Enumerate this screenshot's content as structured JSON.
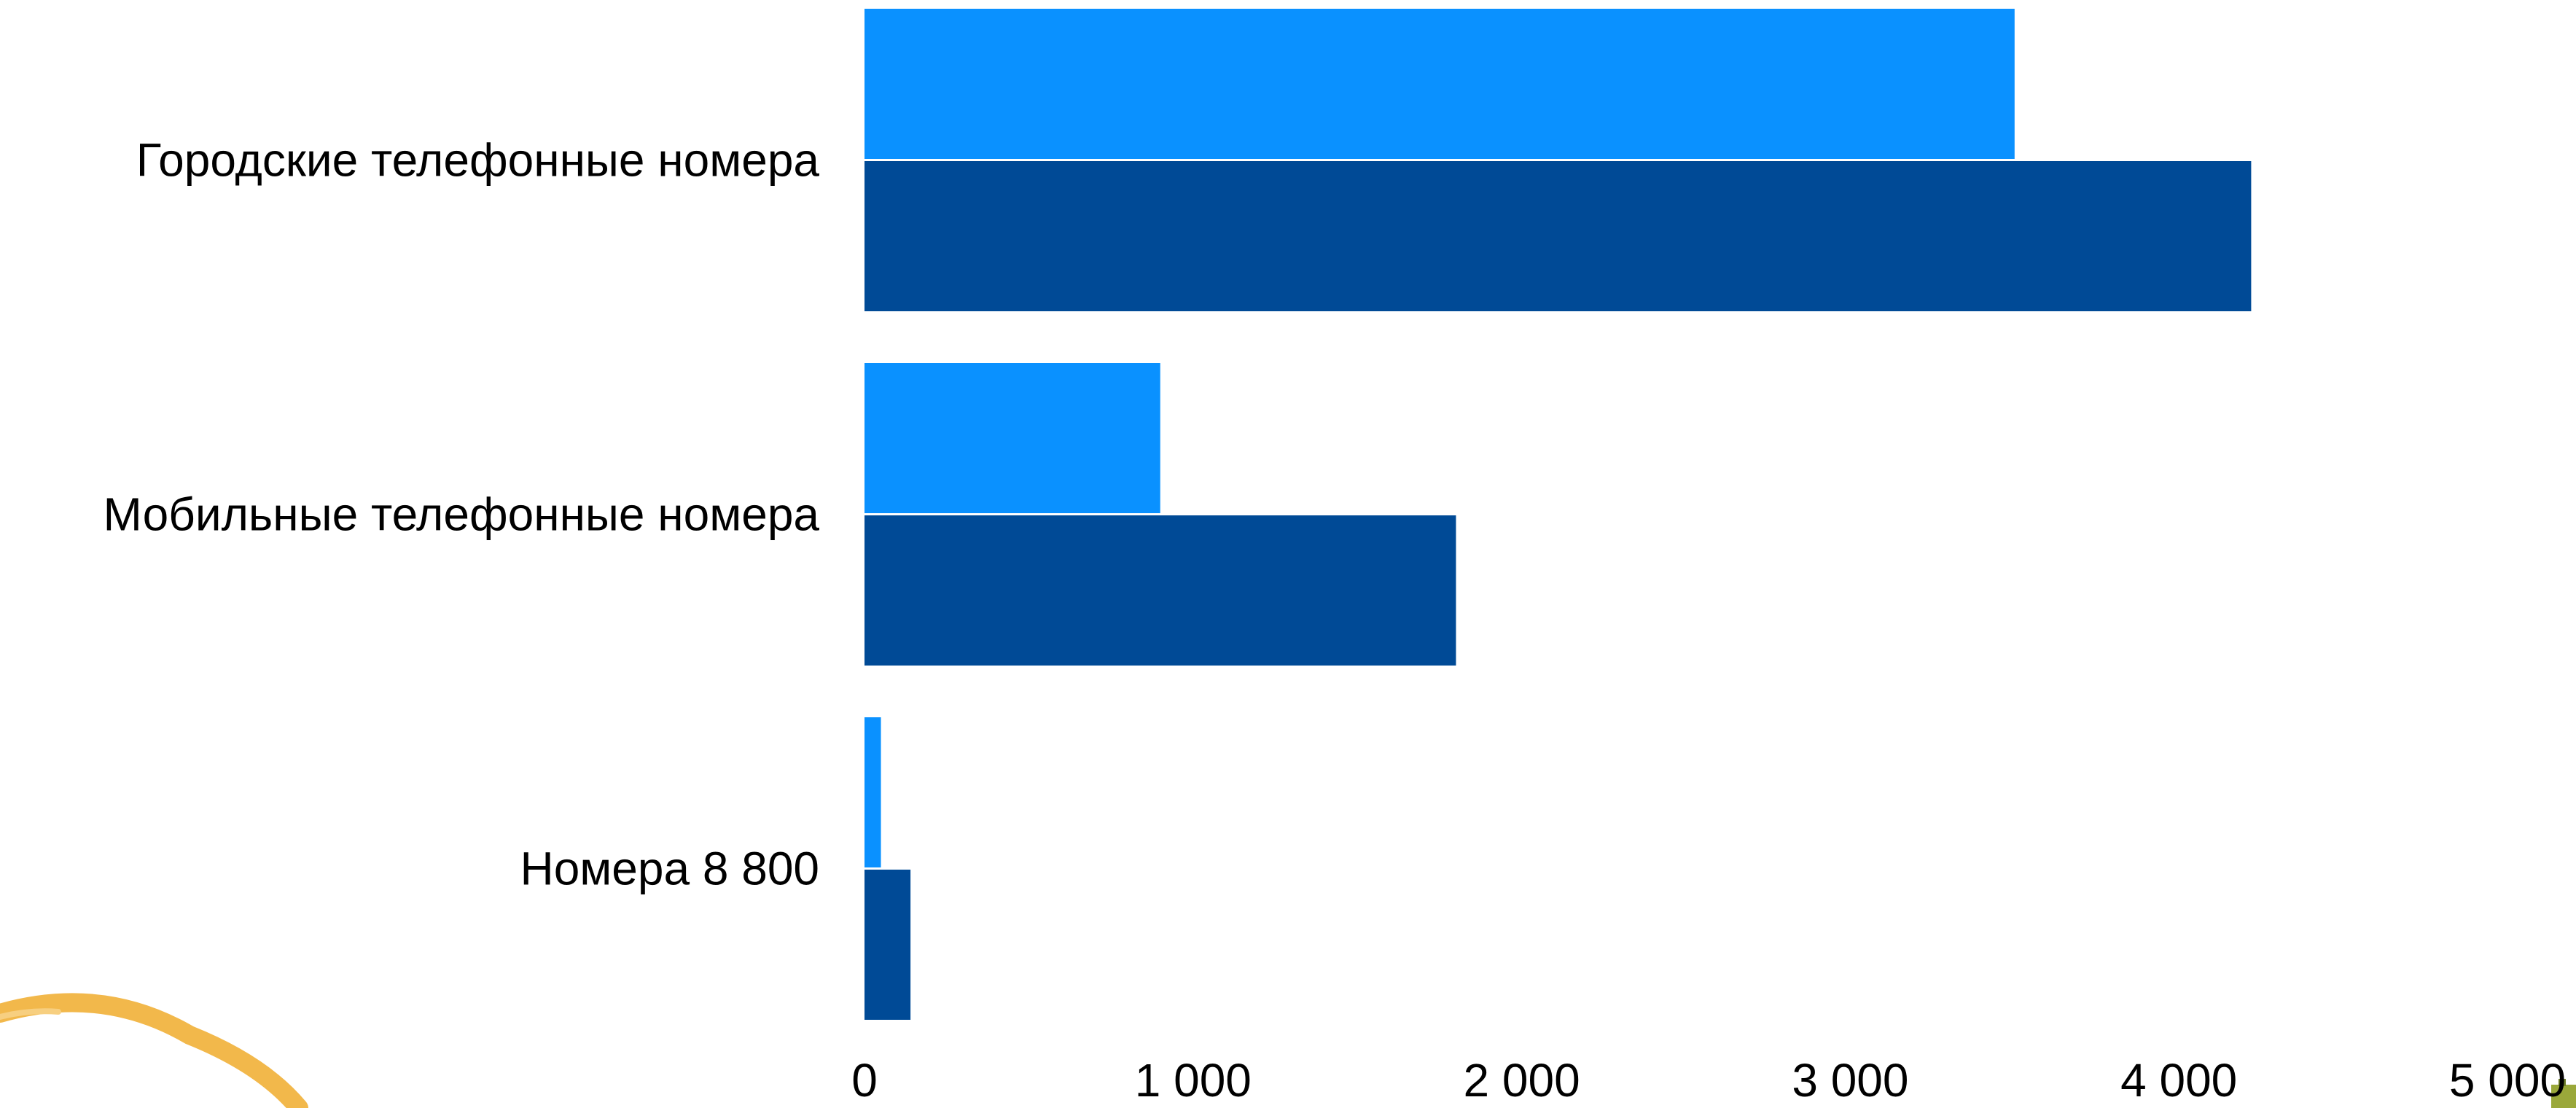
{
  "chart_data": {
    "type": "bar",
    "orientation": "horizontal",
    "categories": [
      "Городские телефонные номера",
      "Мобильные телефонные номера",
      "Номера 8 800"
    ],
    "series": [
      {
        "values": [
          3500,
          900,
          50
        ]
      },
      {
        "values": [
          4220,
          1800,
          140
        ]
      }
    ],
    "xlim": [
      0,
      5000
    ],
    "x_ticks": [
      0,
      1000,
      2000,
      3000,
      4000,
      5000
    ],
    "x_tick_labels": [
      "0",
      "1 000",
      "2 000",
      "3 000",
      "4 000",
      "5 000"
    ],
    "grid": false,
    "legend": "none",
    "title": "",
    "xlabel": "",
    "ylabel": ""
  },
  "colors": {
    "series_light": "#0a91ff",
    "series_dark": "#004a96",
    "decoration_arc": "#f2b84b"
  },
  "decorations": {
    "corner_arc": "orange-arc-icon",
    "corner_logo": "partial-logo-icon"
  }
}
